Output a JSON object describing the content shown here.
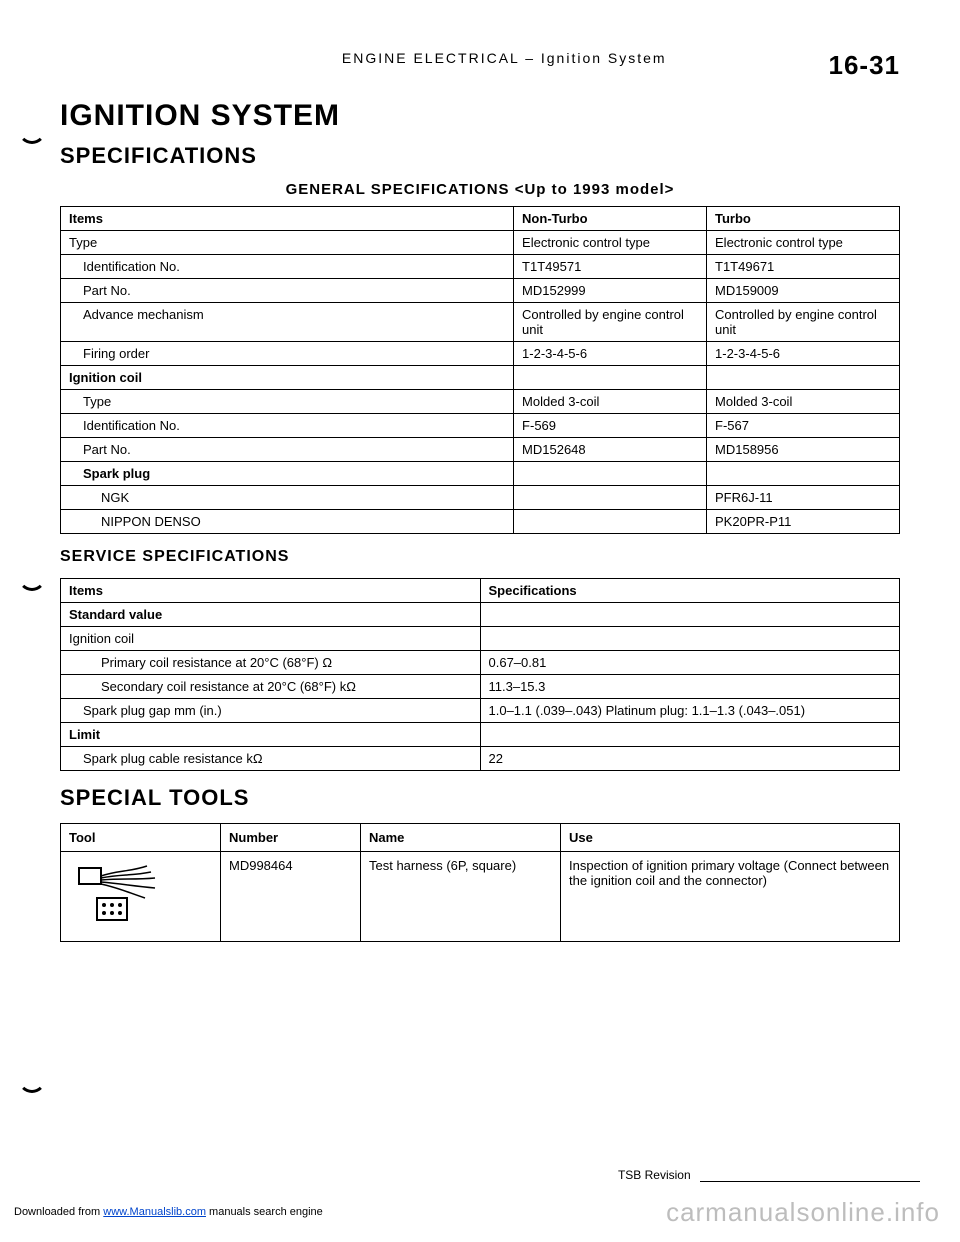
{
  "header": {
    "center": "ENGINE ELECTRICAL – Ignition System",
    "pageno": "16-31"
  },
  "title": "IGNITION SYSTEM",
  "sections": {
    "specs": "SPECIFICATIONS",
    "gensub": "GENERAL SPECIFICATIONS <Up to 1993 model>",
    "svcsub": "SERVICE SPECIFICATIONS",
    "tools": "SPECIAL TOOLS"
  },
  "gen_table": {
    "headers": [
      "Items",
      "Non-Turbo",
      "Turbo"
    ],
    "rows": [
      {
        "c0": "Type",
        "c1": "Electronic control type",
        "c2": "Electronic control type",
        "cls": ""
      },
      {
        "c0": "Identification No.",
        "c1": "T1T49571",
        "c2": "T1T49671",
        "cls": "indent1"
      },
      {
        "c0": "Part No.",
        "c1": "MD152999",
        "c2": "MD159009",
        "cls": "indent1"
      },
      {
        "c0": "Advance mechanism",
        "c1": "Controlled by engine control unit",
        "c2": "Controlled by engine control unit",
        "cls": "indent1"
      },
      {
        "c0": "Firing order",
        "c1": "1-2-3-4-5-6",
        "c2": "1-2-3-4-5-6",
        "cls": "indent1"
      },
      {
        "c0": "Ignition coil",
        "c1": "",
        "c2": "",
        "cls": "",
        "bold": true
      },
      {
        "c0": "Type",
        "c1": "Molded 3-coil",
        "c2": "Molded 3-coil",
        "cls": "indent1"
      },
      {
        "c0": "Identification No.",
        "c1": "F-569",
        "c2": "F-567",
        "cls": "indent1"
      },
      {
        "c0": "Part No.",
        "c1": "MD152648",
        "c2": "MD158956",
        "cls": "indent1"
      },
      {
        "c0": "Spark plug",
        "c1": "",
        "c2": "",
        "cls": "indent1",
        "bold": true
      },
      {
        "c0": "NGK",
        "c1": "",
        "c2": "PFR6J-11",
        "cls": "indent2"
      },
      {
        "c0": "NIPPON DENSO",
        "c1": "",
        "c2": "PK20PR-P11",
        "cls": "indent2"
      }
    ]
  },
  "svc_table": {
    "headers": [
      "Items",
      "Specifications"
    ],
    "rows": [
      {
        "c0": "Standard value",
        "c1": "",
        "bold": true
      },
      {
        "c0": "Ignition coil",
        "c1": ""
      },
      {
        "c0": "Primary coil resistance at 20°C (68°F)    Ω",
        "c1": "0.67–0.81",
        "cls": "indent2"
      },
      {
        "c0": "Secondary coil resistance at 20°C (68°F)    kΩ",
        "c1": "11.3–15.3",
        "cls": "indent2"
      },
      {
        "c0": "Spark plug gap    mm (in.)",
        "c1": "1.0–1.1 (.039–.043)          Platinum plug: 1.1–1.3 (.043–.051)",
        "cls": "indent1"
      },
      {
        "c0": "Limit",
        "c1": "",
        "bold": true
      },
      {
        "c0": "Spark plug cable resistance    kΩ",
        "c1": "22",
        "cls": "indent1"
      }
    ]
  },
  "tools_table": {
    "headers": [
      "Tool",
      "Number",
      "Name",
      "Use"
    ],
    "row": {
      "number": "MD998464",
      "name": "Test harness (6P, square)",
      "use": "Inspection of ignition primary voltage (Connect between the ignition coil and the connector)"
    }
  },
  "tsb": "TSB Revision",
  "footer_prefix": "Downloaded from ",
  "footer_link": "www.Manualslib.com",
  "footer_suffix": " manuals search engine",
  "watermark": "carmanualsonline.info"
}
